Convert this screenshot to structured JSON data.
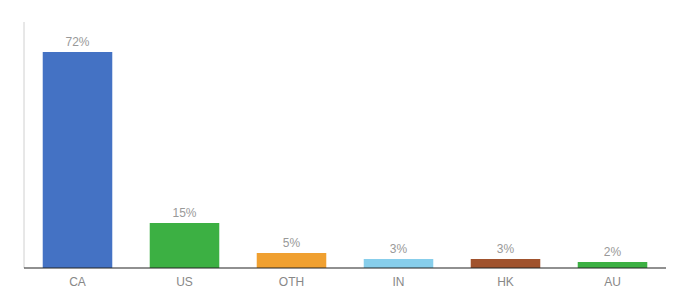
{
  "chart_data": {
    "type": "bar",
    "categories": [
      "CA",
      "US",
      "OTH",
      "IN",
      "HK",
      "AU"
    ],
    "values": [
      72,
      15,
      5,
      3,
      3,
      2
    ],
    "value_labels": [
      "72%",
      "15%",
      "5%",
      "3%",
      "3%",
      "2%"
    ],
    "colors": [
      "#4472C4",
      "#3CB043",
      "#F0A030",
      "#87CEEB",
      "#A0522D",
      "#3CB043"
    ],
    "ylim": [
      0,
      82
    ],
    "data_labels": true,
    "tick_labels": "x",
    "grid": false
  }
}
